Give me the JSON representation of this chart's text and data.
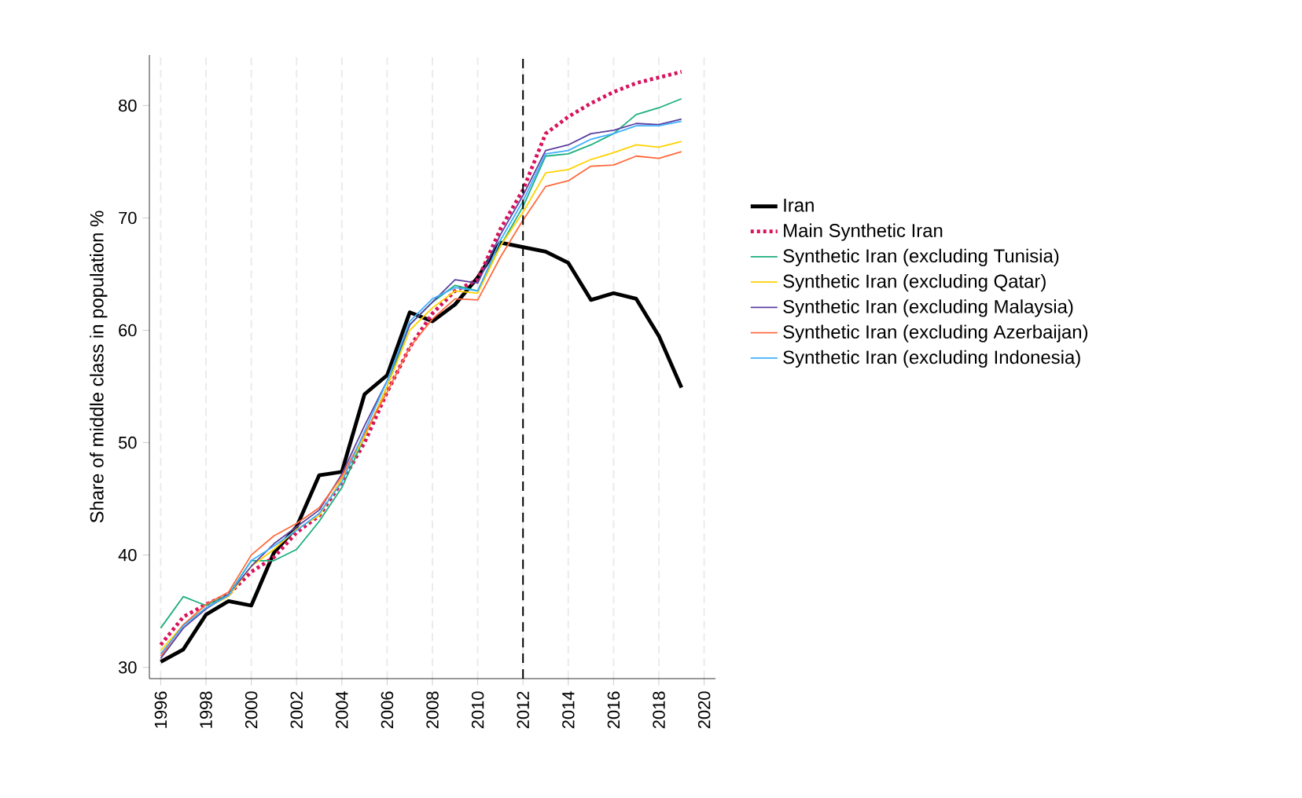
{
  "chart_data": {
    "type": "line",
    "ylabel": "Share of middle class in population %",
    "x": [
      1996,
      1997,
      1998,
      1999,
      2000,
      2001,
      2002,
      2003,
      2004,
      2005,
      2006,
      2007,
      2008,
      2009,
      2010,
      2011,
      2012,
      2013,
      2014,
      2015,
      2016,
      2017,
      2018,
      2019
    ],
    "series": [
      {
        "name": "Iran",
        "color": "#000000",
        "line_style": "solid",
        "values": [
          30.5,
          31.6,
          34.7,
          35.9,
          35.5,
          40.2,
          42.5,
          47.1,
          47.4,
          54.3,
          56.0,
          61.6,
          60.8,
          62.3,
          64.7,
          67.8,
          67.4,
          67.0,
          66.0,
          62.7,
          63.3,
          62.8,
          59.5,
          54.9
        ]
      },
      {
        "name": "Main Synthetic Iran",
        "color": "#d8135c",
        "line_style": "dotted",
        "values": [
          32.0,
          34.5,
          35.6,
          36.5,
          38.5,
          39.8,
          42.0,
          43.5,
          46.5,
          50.0,
          54.5,
          58.5,
          61.5,
          63.5,
          64.5,
          69.0,
          72.5,
          77.5,
          79.0,
          80.2,
          81.2,
          82.0,
          82.5,
          83.0
        ]
      },
      {
        "name": "Synthetic Iran (excluding Tunisia)",
        "color": "#1aaf7d",
        "line_style": "solid",
        "values": [
          33.5,
          36.3,
          35.5,
          36.5,
          39.5,
          39.5,
          40.5,
          43.0,
          46.0,
          50.5,
          55.0,
          60.5,
          62.5,
          64.0,
          63.5,
          67.5,
          71.0,
          75.5,
          75.7,
          76.5,
          77.5,
          79.2,
          79.8,
          80.6
        ]
      },
      {
        "name": "Synthetic Iran (excluding Qatar)",
        "color": "#ffd200",
        "line_style": "solid",
        "values": [
          31.5,
          33.8,
          35.3,
          36.3,
          39.0,
          40.5,
          42.3,
          43.5,
          46.8,
          50.5,
          55.0,
          60.0,
          62.0,
          63.5,
          63.3,
          67.5,
          70.5,
          74.0,
          74.3,
          75.2,
          75.8,
          76.5,
          76.3,
          76.8
        ]
      },
      {
        "name": "Synthetic Iran (excluding Malaysia)",
        "color": "#5b3fa0",
        "line_style": "solid",
        "values": [
          30.8,
          33.5,
          35.2,
          36.5,
          39.0,
          41.0,
          42.5,
          44.0,
          47.2,
          51.5,
          55.5,
          60.5,
          62.5,
          64.5,
          64.2,
          68.5,
          72.0,
          76.0,
          76.5,
          77.5,
          77.8,
          78.4,
          78.3,
          78.8
        ]
      },
      {
        "name": "Synthetic Iran (excluding Azerbaijan)",
        "color": "#ff6a3d",
        "line_style": "solid",
        "values": [
          31.0,
          33.8,
          35.6,
          36.7,
          40.0,
          41.7,
          42.8,
          44.2,
          47.0,
          50.8,
          54.5,
          58.5,
          61.0,
          62.8,
          62.7,
          66.5,
          69.8,
          72.8,
          73.3,
          74.6,
          74.7,
          75.5,
          75.3,
          75.9
        ]
      },
      {
        "name": "Synthetic Iran (excluding Indonesia)",
        "color": "#3fb0ff",
        "line_style": "solid",
        "values": [
          31.2,
          33.7,
          35.3,
          36.4,
          39.5,
          40.8,
          42.2,
          43.7,
          46.5,
          51.0,
          55.5,
          60.8,
          62.8,
          63.8,
          63.5,
          68.0,
          71.5,
          75.7,
          76.0,
          77.0,
          77.5,
          78.2,
          78.2,
          78.6
        ]
      }
    ],
    "xlim": [
      1995.5,
      2020.5
    ],
    "ylim": [
      29,
      84.5
    ],
    "xticks": [
      1996,
      1998,
      2000,
      2002,
      2004,
      2006,
      2008,
      2010,
      2012,
      2014,
      2016,
      2018,
      2020
    ],
    "yticks": [
      30,
      40,
      50,
      60,
      70,
      80
    ],
    "ref_lines": [
      {
        "axis": "x",
        "value": 2012,
        "color": "#000000",
        "line_style": "dashed"
      }
    ],
    "grid": "x",
    "legend": "right",
    "marker": "none"
  }
}
